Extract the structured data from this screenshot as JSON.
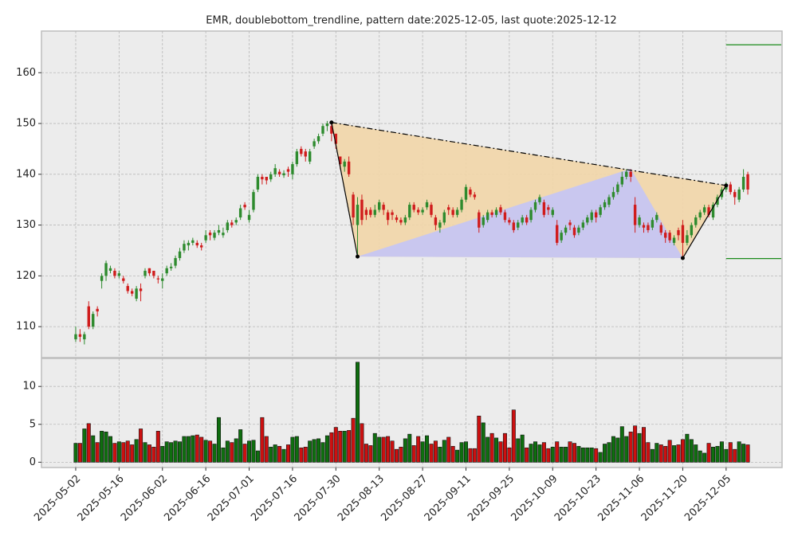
{
  "chart_data": {
    "type": "candlestick",
    "title": "EMR, doublebottom_trendline, pattern date:2025-12-05, last quote:2025-12-12",
    "categories": [
      "2025-05-02",
      null,
      null,
      null,
      null,
      null,
      null,
      null,
      null,
      null,
      "2025-05-16",
      null,
      null,
      null,
      null,
      null,
      null,
      null,
      null,
      null,
      "2025-06-02",
      null,
      null,
      null,
      null,
      null,
      null,
      null,
      null,
      null,
      "2025-06-16",
      null,
      null,
      null,
      null,
      null,
      null,
      null,
      null,
      null,
      "2025-07-01",
      null,
      null,
      null,
      null,
      null,
      null,
      null,
      null,
      null,
      "2025-07-16",
      null,
      null,
      null,
      null,
      null,
      null,
      null,
      null,
      null,
      "2025-07-30",
      null,
      null,
      null,
      null,
      null,
      null,
      null,
      null,
      null,
      "2025-08-13",
      null,
      null,
      null,
      null,
      null,
      null,
      null,
      null,
      null,
      "2025-08-27",
      null,
      null,
      null,
      null,
      null,
      null,
      null,
      null,
      null,
      "2025-09-11",
      null,
      null,
      null,
      null,
      null,
      null,
      null,
      null,
      null,
      "2025-09-25",
      null,
      null,
      null,
      null,
      null,
      null,
      null,
      null,
      null,
      "2025-10-09",
      null,
      null,
      null,
      null,
      null,
      null,
      null,
      null,
      null,
      "2025-10-23",
      null,
      null,
      null,
      null,
      null,
      null,
      null,
      null,
      null,
      "2025-11-06",
      null,
      null,
      null,
      null,
      null,
      null,
      null,
      null,
      null,
      "2025-11-20",
      null,
      null,
      null,
      null,
      null,
      null,
      null,
      null,
      null,
      "2025-12-05",
      null,
      null,
      null,
      null,
      null
    ],
    "open": [
      107.5,
      108.5,
      107.5,
      114,
      110,
      113.5,
      119,
      120,
      121,
      121,
      120,
      119.5,
      118,
      117,
      115.5,
      117.5,
      120,
      121.5,
      121,
      119.5,
      119,
      120.5,
      121.5,
      122,
      123.5,
      125,
      126,
      126.5,
      126.5,
      126,
      127,
      128.5,
      127.5,
      128.5,
      128,
      129,
      130.5,
      130.5,
      131.5,
      134,
      131,
      133,
      137,
      139.5,
      139.5,
      139,
      140,
      140.5,
      139.8,
      141,
      140,
      142,
      145,
      144.5,
      142.5,
      145.5,
      146.5,
      148,
      149.5,
      149.5,
      148,
      143.5,
      141.5,
      142.5,
      136,
      130,
      135,
      133,
      133,
      132,
      133,
      134,
      132.5,
      132.5,
      131.5,
      131,
      130.5,
      131.5,
      134,
      133,
      132.5,
      133.5,
      134,
      131.5,
      129.5,
      130.5,
      133.5,
      133,
      132,
      133,
      135,
      137,
      136,
      132.5,
      130,
      131,
      132.5,
      132,
      133.5,
      132.5,
      131,
      130.5,
      129.5,
      130.5,
      131.5,
      131,
      133,
      134.5,
      134.5,
      133.5,
      132,
      130,
      127,
      128.5,
      130.5,
      129.5,
      128.5,
      129.5,
      130.5,
      131,
      132.5,
      132,
      133.5,
      134,
      135.5,
      136.5,
      138,
      139.5,
      140.5,
      134,
      130,
      130,
      130,
      129.5,
      131,
      130,
      128.5,
      128.5,
      126.5,
      129,
      130,
      126.5,
      128,
      130,
      131.5,
      132.5,
      133.5,
      131.5,
      134,
      135.5,
      137,
      138,
      136.5,
      135,
      137,
      140
    ],
    "high": [
      110,
      109.5,
      109,
      115,
      113,
      114,
      120.5,
      123,
      122,
      121.5,
      121,
      120,
      118.5,
      117.5,
      118,
      118.5,
      121.5,
      121.5,
      121,
      120,
      120.5,
      122,
      122.5,
      124,
      125.5,
      127,
      127,
      127.5,
      127,
      126.5,
      129,
      129,
      129,
      130,
      129.5,
      131,
      131,
      131.5,
      134,
      134.5,
      133,
      137,
      140,
      140,
      139.5,
      140.5,
      142,
      141,
      140.8,
      141.5,
      142.5,
      145,
      145.5,
      145,
      145,
      147,
      148,
      150,
      150.5,
      150.2,
      147.5,
      143,
      143,
      143.5,
      136.5,
      135.5,
      136,
      133.5,
      133.5,
      134,
      135,
      134.5,
      133,
      133,
      132,
      131.5,
      132,
      134.5,
      134.5,
      133.5,
      133.5,
      135,
      134.5,
      132,
      131,
      133,
      134,
      133.5,
      133.5,
      135.5,
      138,
      137.5,
      136.5,
      133,
      132,
      133,
      133,
      133.5,
      134,
      133,
      131.5,
      131,
      131,
      132,
      132,
      133.5,
      135,
      136,
      135,
      134,
      133.5,
      131,
      129,
      130,
      131,
      130,
      130,
      131,
      132,
      133,
      133,
      134,
      135,
      136,
      137.5,
      138.5,
      140.5,
      141,
      141,
      135.5,
      132,
      130.5,
      130.5,
      131.5,
      132.5,
      130.5,
      129,
      129,
      128,
      129.5,
      131,
      129,
      130.5,
      132,
      133,
      134,
      134,
      134.5,
      136,
      137.5,
      138.5,
      138.5,
      137,
      137.5,
      141,
      140.5
    ],
    "low": [
      107,
      107,
      106.5,
      109.5,
      109.5,
      112,
      117.5,
      119,
      120.5,
      119.5,
      119.5,
      118.5,
      116.5,
      116,
      115,
      115,
      119.5,
      120,
      119.5,
      118.5,
      117.5,
      120,
      121,
      121.5,
      123,
      124.5,
      125,
      126,
      125.5,
      125,
      126.5,
      127,
      127,
      128,
      127.5,
      128.5,
      129.5,
      130,
      131,
      133,
      130.5,
      132.5,
      136.5,
      138,
      138,
      138.5,
      139.5,
      139.5,
      139.3,
      139.5,
      139,
      141.5,
      143.5,
      142.5,
      142,
      145,
      146,
      147.5,
      148.5,
      146.5,
      145,
      141,
      140.5,
      139.5,
      130,
      123.8,
      130,
      131,
      131.5,
      131.5,
      132.5,
      132,
      130,
      131,
      130.5,
      130,
      130,
      131,
      132.5,
      132,
      132,
      133,
      131.5,
      129,
      128.5,
      130,
      132,
      131.5,
      131.5,
      132.5,
      134.5,
      135.5,
      135,
      128.5,
      129.5,
      130.5,
      131.5,
      131.5,
      132,
      130.5,
      130,
      128.5,
      129,
      130,
      130,
      130.5,
      132.5,
      134,
      131.5,
      132,
      131.5,
      126,
      126.5,
      128,
      129,
      127.5,
      128,
      129,
      130,
      130.5,
      130.5,
      131.5,
      133,
      133.5,
      135,
      136,
      137.5,
      139,
      138.5,
      128.5,
      129.5,
      128.5,
      128.5,
      129,
      130.5,
      128,
      126.5,
      126.5,
      126,
      127,
      123.5,
      126,
      127.5,
      129.5,
      131,
      132,
      131.5,
      131,
      133.5,
      135,
      136.5,
      136,
      134,
      134.5,
      136.5,
      136
    ],
    "close": [
      108.5,
      108,
      108.5,
      110,
      112.5,
      113,
      120,
      122.5,
      121.5,
      120,
      120.5,
      119,
      117,
      116.5,
      117.5,
      117,
      121,
      120.5,
      120,
      119.3,
      119.5,
      121.5,
      121.8,
      123.5,
      124.8,
      126.3,
      126.5,
      127,
      126,
      125.6,
      128,
      128,
      128.5,
      129,
      128.5,
      130.5,
      130,
      131,
      133.3,
      133.5,
      132,
      136.5,
      139.5,
      139,
      138.8,
      140,
      141.2,
      140,
      140.2,
      140.5,
      142,
      144.5,
      144,
      143.5,
      144.5,
      146.5,
      147.5,
      149.5,
      150,
      148,
      146,
      142,
      142.5,
      140,
      131.5,
      134,
      131,
      132,
      132,
      133,
      134.5,
      133,
      131,
      132,
      131,
      130.5,
      131.5,
      134,
      133,
      132.5,
      133,
      134.5,
      132,
      130,
      130.5,
      132.5,
      133,
      132,
      133,
      135,
      137.5,
      136,
      135.5,
      129.5,
      131.5,
      132.5,
      132,
      133,
      132.5,
      131,
      130.5,
      129,
      130.5,
      131.5,
      130.5,
      133,
      134.5,
      135.5,
      132,
      133,
      133,
      126.5,
      128.5,
      129.5,
      130,
      128,
      129.5,
      130.5,
      131.5,
      132.5,
      131.5,
      133.5,
      134.5,
      135.5,
      136.5,
      138,
      139.5,
      140.5,
      139.5,
      130,
      131.5,
      129.5,
      129,
      131,
      132,
      128.5,
      127.5,
      127,
      127.5,
      128,
      126.5,
      128,
      130,
      131.5,
      132.5,
      133.5,
      132,
      134,
      135.5,
      137,
      138,
      136.5,
      135.5,
      137,
      139.5,
      137
    ],
    "volume": [
      2.5,
      2.5,
      4.4,
      5.1,
      3.5,
      2.6,
      4.1,
      4,
      3.4,
      2.5,
      2.7,
      2.6,
      2.8,
      2.3,
      3,
      4.4,
      2.6,
      2.3,
      2,
      4.1,
      2.1,
      2.7,
      2.6,
      2.8,
      2.7,
      3.4,
      3.4,
      3.5,
      3.6,
      3.3,
      2.9,
      2.8,
      2.4,
      5.9,
      1.9,
      2.8,
      2.6,
      3.1,
      4.3,
      2.4,
      2.8,
      2.9,
      1.5,
      5.9,
      3.4,
      2,
      2.3,
      2.1,
      1.7,
      2.3,
      3.3,
      3.4,
      1.9,
      2,
      2.8,
      3,
      3.1,
      2.6,
      3.5,
      3.9,
      4.6,
      4.1,
      4.1,
      4.2,
      5.8,
      13.2,
      5.1,
      2.4,
      2.2,
      3.8,
      3.3,
      3.3,
      3.4,
      2.8,
      1.7,
      2,
      3.1,
      3.7,
      2.2,
      3.4,
      2.7,
      3.5,
      2.4,
      2.8,
      2,
      2.9,
      3.3,
      2.1,
      1.6,
      2.6,
      2.7,
      1.8,
      1.8,
      6.1,
      5.2,
      3.3,
      3.8,
      3.2,
      2.7,
      3.8,
      1.9,
      6.9,
      3.1,
      3.6,
      1.9,
      2.4,
      2.7,
      2.3,
      2.6,
      1.8,
      2,
      2.7,
      2,
      2,
      2.7,
      2.5,
      2.1,
      1.9,
      1.9,
      1.9,
      1.8,
      1.3,
      2.4,
      2.6,
      3.4,
      3.2,
      4.7,
      3.4,
      4,
      4.8,
      3.8,
      4.6,
      2.6,
      1.7,
      2.5,
      2.3,
      2.1,
      2.9,
      2.2,
      2.3,
      3,
      3.7,
      3,
      2.3,
      1.5,
      1.2,
      2.5,
      2,
      2.1,
      2.7,
      1.7,
      2.6,
      1.7,
      2.7,
      2.4,
      2.3
    ],
    "ylim": [
      103.9,
      168.2
    ],
    "yticks": [
      110,
      120,
      130,
      140,
      150,
      160
    ],
    "volume_ylim": [
      -0.7,
      13.7
    ],
    "volume_yticks": [
      0,
      5,
      10
    ],
    "up_color": "#2e8b2e",
    "down_color": "#d01c1c",
    "volume_up_color": "#0f6e0f",
    "volume_down_color": "#cc1010",
    "pattern": {
      "x": [
        59,
        65,
        128,
        140,
        150
      ],
      "y": [
        150.2,
        123.8,
        141.1,
        123.5,
        137.8
      ],
      "fill": "#f2d6a8",
      "fill2": "#c6c6f2"
    },
    "targets": [
      165.5,
      123.4
    ],
    "target_color": "#1a8a1a",
    "grid": true
  }
}
